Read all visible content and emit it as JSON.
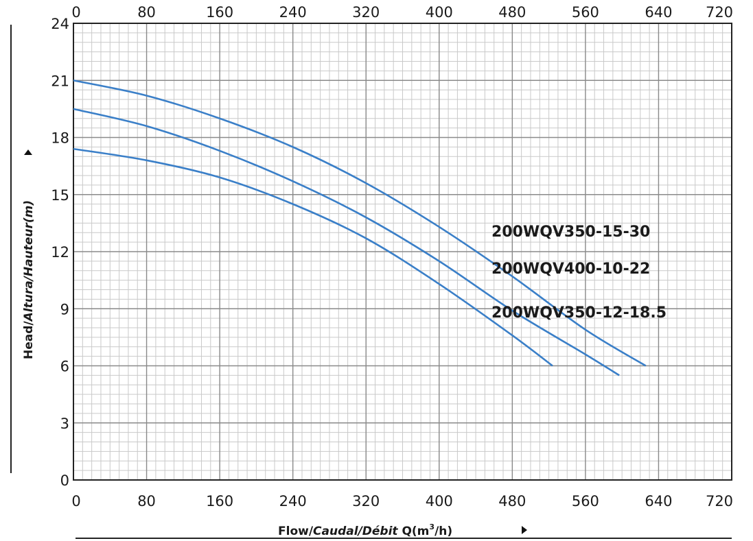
{
  "chart_data": {
    "type": "line",
    "xlabel": {
      "part1": "Flow/",
      "part2": "Caudal/Débit",
      "part3": " Q(m",
      "sup": "3",
      "part4": "/h)"
    },
    "ylabel": {
      "part1": "Head/",
      "part2": "Altura/Hauteur(m)"
    },
    "xlim": [
      0,
      720
    ],
    "ylim": [
      0,
      24
    ],
    "x_ticks": [
      0,
      80,
      160,
      240,
      320,
      400,
      480,
      560,
      640,
      720
    ],
    "y_ticks": [
      0,
      3,
      6,
      9,
      12,
      15,
      18,
      21,
      24
    ],
    "grid": true,
    "series": [
      {
        "name": "200WQV350-15-30",
        "color": "#3a7fc8",
        "x": [
          0,
          80,
          160,
          240,
          320,
          400,
          480,
          560,
          626
        ],
        "y": [
          21.0,
          20.2,
          19.0,
          17.5,
          15.6,
          13.3,
          10.7,
          7.9,
          6.0
        ]
      },
      {
        "name": "200WQV400-10-22",
        "color": "#3a7fc8",
        "x": [
          0,
          80,
          160,
          240,
          320,
          400,
          480,
          560,
          597
        ],
        "y": [
          19.5,
          18.6,
          17.3,
          15.7,
          13.8,
          11.5,
          8.9,
          6.6,
          5.5
        ]
      },
      {
        "name": "200WQV350-12-18.5",
        "color": "#3a7fc8",
        "x": [
          0,
          80,
          160,
          240,
          320,
          400,
          480,
          524
        ],
        "y": [
          17.4,
          16.8,
          15.9,
          14.5,
          12.7,
          10.3,
          7.6,
          6.0
        ]
      }
    ]
  }
}
